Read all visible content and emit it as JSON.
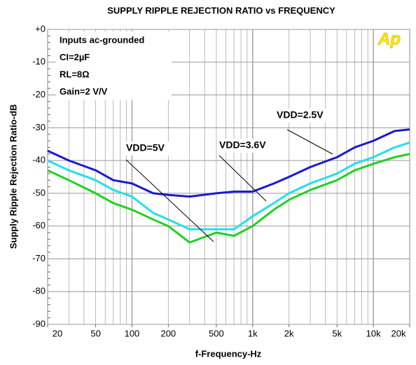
{
  "chart_data": {
    "type": "line",
    "title": "SUPPLY RIPPLE REJECTION RATIO vs FREQUENCY",
    "xlabel": "f-Frequency-Hz",
    "ylabel": "Supply Ripple Rejection Ratio-dB",
    "xscale": "log",
    "x": [
      20,
      30,
      50,
      70,
      100,
      150,
      200,
      300,
      500,
      700,
      1000,
      1500,
      2000,
      3000,
      5000,
      7000,
      10000,
      15000,
      20000
    ],
    "series": [
      {
        "name": "VDD=2.5V",
        "color": "#1a1ad0",
        "values": [
          -37,
          -40,
          -43,
          -46,
          -47,
          -50,
          -50.5,
          -51,
          -50,
          -49.5,
          -49.5,
          -47,
          -45,
          -42,
          -39,
          -36,
          -34,
          -31,
          -30.5
        ]
      },
      {
        "name": "VDD=3.6V",
        "color": "#22e0e8",
        "values": [
          -40,
          -43,
          -46,
          -49,
          -51,
          -56,
          -58,
          -61,
          -61,
          -61,
          -57,
          -53,
          -50,
          -47,
          -44,
          -41,
          -39,
          -36,
          -34.5
        ]
      },
      {
        "name": "VDD=5V",
        "color": "#22d022",
        "values": [
          -43,
          -46,
          -50,
          -53,
          -55,
          -58,
          -60,
          -65,
          -62,
          -63,
          -60,
          -55,
          -52,
          -49,
          -46,
          -43,
          -41,
          -39,
          -38
        ]
      }
    ],
    "notes": [
      "Inputs ac-grounded",
      "CI=2µF",
      "RL=8Ω",
      "Gain=2 V/V"
    ],
    "logo": "Ap",
    "xlim": [
      20,
      20000
    ],
    "xticks": [
      20,
      50,
      100,
      200,
      500,
      {
        "value": 1000,
        "label": "1k"
      },
      {
        "value": 2000,
        "label": "2k"
      },
      {
        "value": 5000,
        "label": "5k"
      },
      {
        "value": 10000,
        "label": "10k"
      },
      {
        "value": 20000,
        "label": "20k"
      }
    ],
    "ylim": [
      -90,
      0
    ],
    "yticks": [
      {
        "value": 0,
        "label": "+0"
      },
      -10,
      -20,
      -30,
      -40,
      -50,
      -60,
      -70,
      -80,
      -90
    ],
    "grid": true
  }
}
